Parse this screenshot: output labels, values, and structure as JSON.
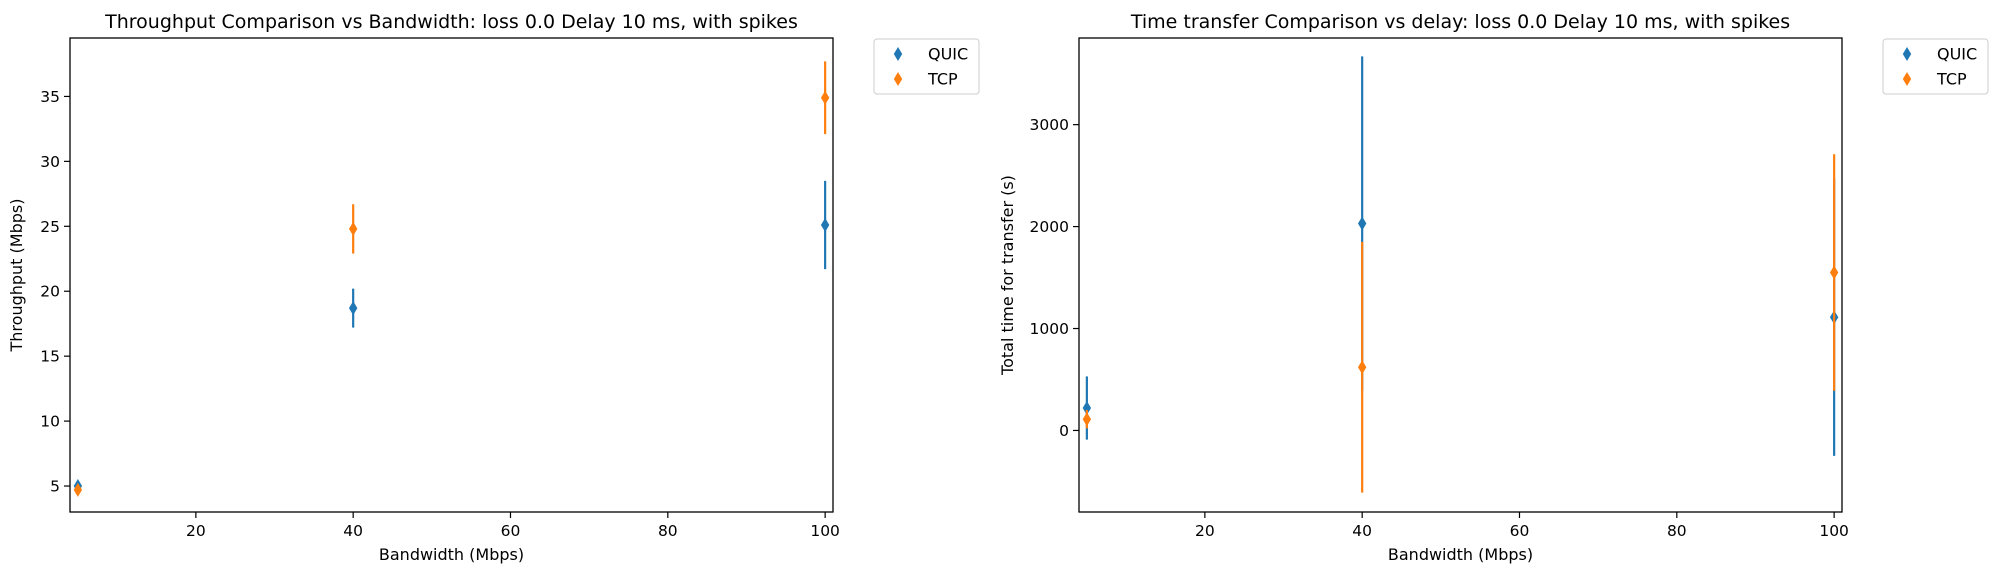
{
  "colors": {
    "quic": "#1f77b4",
    "tcp": "#ff7f0e",
    "axis": "#000000",
    "legend_border": "#cccccc"
  },
  "chart_data": [
    {
      "type": "scatter",
      "title": "Throughput Comparison vs Bandwidth: loss 0.0 Delay 10 ms, with spikes",
      "xlabel": "Bandwidth (Mbps)",
      "ylabel": "Throughput (Mbps)",
      "xlim": [
        4,
        101
      ],
      "ylim": [
        3,
        39.5
      ],
      "xticks": [
        20,
        40,
        60,
        80,
        100
      ],
      "yticks": [
        5,
        10,
        15,
        20,
        25,
        30,
        35
      ],
      "grid": false,
      "legend": "outside-top-right",
      "series": [
        {
          "name": "QUIC",
          "marker": "thin_diamond",
          "x": [
            5,
            40,
            100
          ],
          "y": [
            5.0,
            18.7,
            25.1
          ],
          "yerr": [
            0.2,
            1.5,
            3.4
          ]
        },
        {
          "name": "TCP",
          "marker": "thin_diamond",
          "x": [
            5,
            40,
            100
          ],
          "y": [
            4.7,
            24.8,
            34.9
          ],
          "yerr": [
            0.3,
            1.9,
            2.8
          ]
        }
      ]
    },
    {
      "type": "scatter",
      "title": "Time transfer Comparison vs delay: loss 0.0 Delay 10 ms, with spikes",
      "xlabel": "Bandwidth (Mbps)",
      "ylabel": "Total time for transfer (s)",
      "xlim": [
        4,
        101
      ],
      "ylim": [
        -800,
        3850
      ],
      "xticks": [
        20,
        40,
        60,
        80,
        100
      ],
      "yticks": [
        0,
        1000,
        2000,
        3000
      ],
      "grid": false,
      "legend": "outside-top-right",
      "series": [
        {
          "name": "QUIC",
          "marker": "thin_diamond",
          "x": [
            5,
            40,
            100
          ],
          "y": [
            220,
            2030,
            1110
          ],
          "yerr": [
            310,
            1640,
            1360
          ]
        },
        {
          "name": "TCP",
          "marker": "thin_diamond",
          "x": [
            5,
            40,
            100
          ],
          "y": [
            110,
            620,
            1550
          ],
          "yerr": [
            90,
            1230,
            1160
          ]
        }
      ]
    }
  ]
}
